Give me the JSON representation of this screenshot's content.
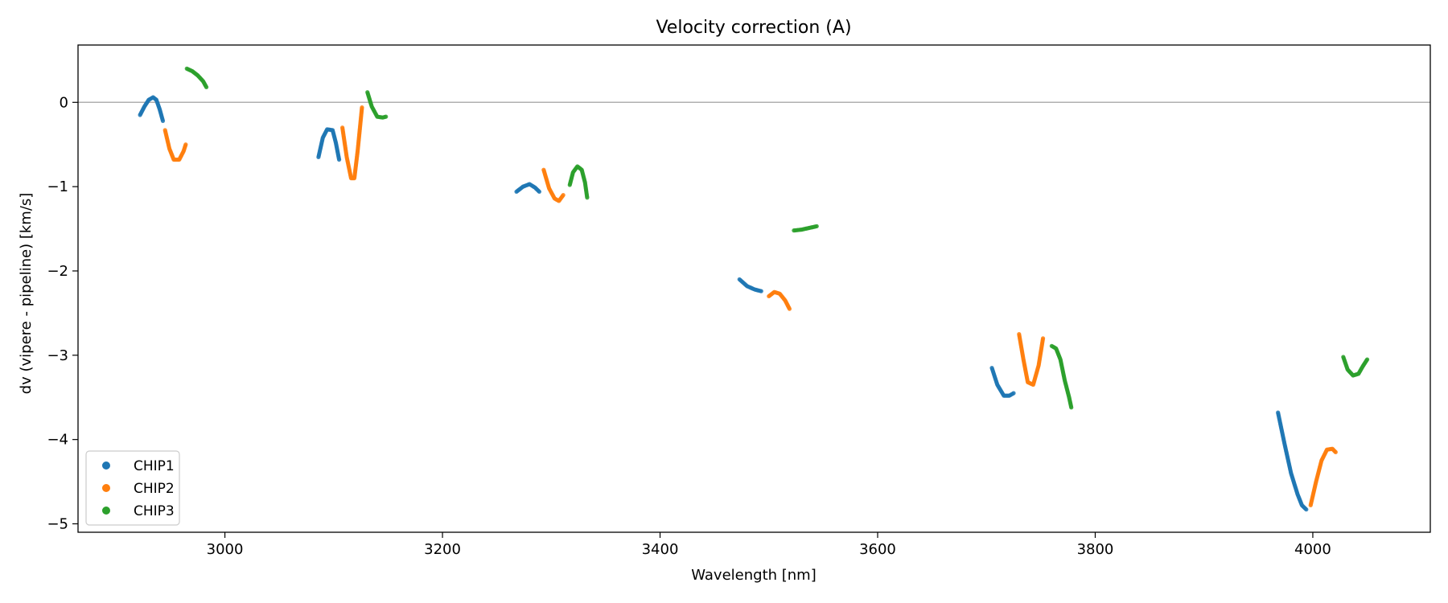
{
  "chart_data": {
    "type": "scatter",
    "title": "Velocity correction (A)",
    "xlabel": "Wavelength [nm]",
    "ylabel": "dv (vipere - pipeline) [km/s]",
    "xlim": [
      2865,
      4108
    ],
    "ylim": [
      -5.1,
      0.68
    ],
    "xticks": [
      3000,
      3200,
      3400,
      3600,
      3800,
      4000
    ],
    "xtick_labels": [
      "3000",
      "3200",
      "3400",
      "3600",
      "3800",
      "4000"
    ],
    "yticks": [
      0,
      -1,
      -2,
      -3,
      -4,
      -5
    ],
    "ytick_labels": [
      "0",
      "−1",
      "−2",
      "−3",
      "−4",
      "−5"
    ],
    "reference_line": 0,
    "legend_position": "lower-left",
    "legend": [
      "CHIP1",
      "CHIP2",
      "CHIP3"
    ],
    "series": [
      {
        "name": "CHIP1",
        "color": "#1f77b4",
        "segments": [
          [
            [
              2922,
              -0.15
            ],
            [
              2926,
              -0.05
            ],
            [
              2930,
              0.03
            ],
            [
              2934,
              0.06
            ],
            [
              2937,
              0.03
            ],
            [
              2940,
              -0.08
            ],
            [
              2943,
              -0.22
            ]
          ],
          [
            [
              3086,
              -0.65
            ],
            [
              3090,
              -0.42
            ],
            [
              3094,
              -0.32
            ],
            [
              3099,
              -0.33
            ],
            [
              3102,
              -0.48
            ],
            [
              3105,
              -0.68
            ]
          ],
          [
            [
              3268,
              -1.06
            ],
            [
              3274,
              -1.0
            ],
            [
              3280,
              -0.97
            ],
            [
              3285,
              -1.01
            ],
            [
              3289,
              -1.06
            ]
          ],
          [
            [
              3473,
              -2.1
            ],
            [
              3480,
              -2.18
            ],
            [
              3487,
              -2.22
            ],
            [
              3493,
              -2.24
            ]
          ],
          [
            [
              3705,
              -3.15
            ],
            [
              3710,
              -3.35
            ],
            [
              3716,
              -3.48
            ],
            [
              3721,
              -3.48
            ],
            [
              3725,
              -3.45
            ]
          ],
          [
            [
              3968,
              -3.68
            ],
            [
              3974,
              -4.05
            ],
            [
              3980,
              -4.4
            ],
            [
              3986,
              -4.65
            ],
            [
              3990,
              -4.78
            ],
            [
              3994,
              -4.83
            ]
          ]
        ]
      },
      {
        "name": "CHIP2",
        "color": "#ff7f0e",
        "segments": [
          [
            [
              2945,
              -0.33
            ],
            [
              2949,
              -0.55
            ],
            [
              2953,
              -0.68
            ],
            [
              2958,
              -0.68
            ],
            [
              2962,
              -0.58
            ],
            [
              2964,
              -0.5
            ]
          ],
          [
            [
              3108,
              -0.3
            ],
            [
              3112,
              -0.65
            ],
            [
              3116,
              -0.9
            ],
            [
              3119,
              -0.9
            ],
            [
              3122,
              -0.58
            ],
            [
              3126,
              -0.06
            ]
          ],
          [
            [
              3293,
              -0.8
            ],
            [
              3298,
              -1.02
            ],
            [
              3303,
              -1.14
            ],
            [
              3307,
              -1.17
            ],
            [
              3311,
              -1.1
            ]
          ],
          [
            [
              3500,
              -2.3
            ],
            [
              3505,
              -2.25
            ],
            [
              3510,
              -2.27
            ],
            [
              3515,
              -2.35
            ],
            [
              3519,
              -2.45
            ]
          ],
          [
            [
              3730,
              -2.75
            ],
            [
              3734,
              -3.05
            ],
            [
              3738,
              -3.32
            ],
            [
              3743,
              -3.35
            ],
            [
              3748,
              -3.12
            ],
            [
              3752,
              -2.8
            ]
          ],
          [
            [
              3998,
              -4.78
            ],
            [
              4003,
              -4.5
            ],
            [
              4008,
              -4.25
            ],
            [
              4013,
              -4.12
            ],
            [
              4018,
              -4.11
            ],
            [
              4021,
              -4.15
            ]
          ]
        ]
      },
      {
        "name": "CHIP3",
        "color": "#2ca02c",
        "segments": [
          [
            [
              2965,
              0.4
            ],
            [
              2970,
              0.37
            ],
            [
              2975,
              0.32
            ],
            [
              2980,
              0.25
            ],
            [
              2983,
              0.18
            ]
          ],
          [
            [
              3131,
              0.12
            ],
            [
              3135,
              -0.05
            ],
            [
              3140,
              -0.17
            ],
            [
              3145,
              -0.18
            ],
            [
              3148,
              -0.17
            ]
          ],
          [
            [
              3317,
              -0.98
            ],
            [
              3320,
              -0.83
            ],
            [
              3324,
              -0.76
            ],
            [
              3328,
              -0.8
            ],
            [
              3331,
              -0.95
            ],
            [
              3333,
              -1.13
            ]
          ],
          [
            [
              3523,
              -1.52
            ],
            [
              3530,
              -1.51
            ],
            [
              3537,
              -1.49
            ],
            [
              3544,
              -1.47
            ]
          ],
          [
            [
              3760,
              -2.89
            ],
            [
              3764,
              -2.92
            ],
            [
              3768,
              -3.05
            ],
            [
              3772,
              -3.3
            ],
            [
              3776,
              -3.5
            ],
            [
              3778,
              -3.62
            ]
          ],
          [
            [
              4028,
              -3.02
            ],
            [
              4032,
              -3.17
            ],
            [
              4037,
              -3.24
            ],
            [
              4042,
              -3.22
            ],
            [
              4046,
              -3.13
            ],
            [
              4050,
              -3.05
            ]
          ]
        ]
      }
    ]
  }
}
